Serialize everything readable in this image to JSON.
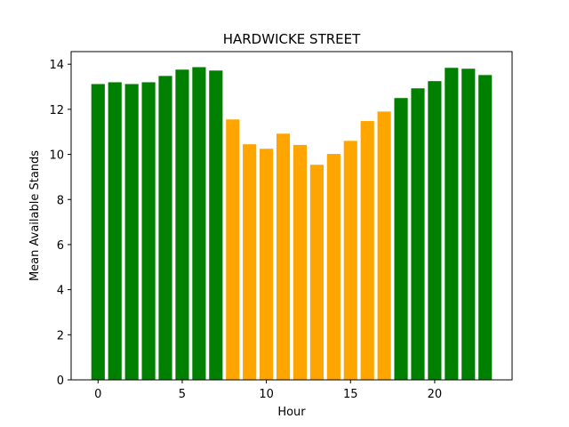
{
  "chart_data": {
    "type": "bar",
    "title": "HARDWICKE STREET",
    "xlabel": "Hour",
    "ylabel": "Mean Available Stands",
    "x": [
      0,
      1,
      2,
      3,
      4,
      5,
      6,
      7,
      8,
      9,
      10,
      11,
      12,
      13,
      14,
      15,
      16,
      17,
      18,
      19,
      20,
      21,
      22,
      23
    ],
    "values": [
      13.12,
      13.2,
      13.12,
      13.2,
      13.48,
      13.76,
      13.87,
      13.72,
      11.55,
      10.45,
      10.25,
      10.92,
      10.42,
      9.54,
      10.02,
      10.6,
      11.48,
      11.9,
      12.5,
      12.93,
      13.25,
      13.84,
      13.8,
      13.52
    ],
    "colors": [
      "#008000",
      "#008000",
      "#008000",
      "#008000",
      "#008000",
      "#008000",
      "#008000",
      "#008000",
      "#ffa500",
      "#ffa500",
      "#ffa500",
      "#ffa500",
      "#ffa500",
      "#ffa500",
      "#ffa500",
      "#ffa500",
      "#ffa500",
      "#ffa500",
      "#008000",
      "#008000",
      "#008000",
      "#008000",
      "#008000",
      "#008000"
    ],
    "xlim": [
      -1.6,
      24.6
    ],
    "ylim": [
      0,
      14.56
    ],
    "xticks": [
      0,
      5,
      10,
      15,
      20
    ],
    "yticks": [
      0,
      2,
      4,
      6,
      8,
      10,
      12,
      14
    ],
    "grid": false,
    "legend": "none"
  }
}
